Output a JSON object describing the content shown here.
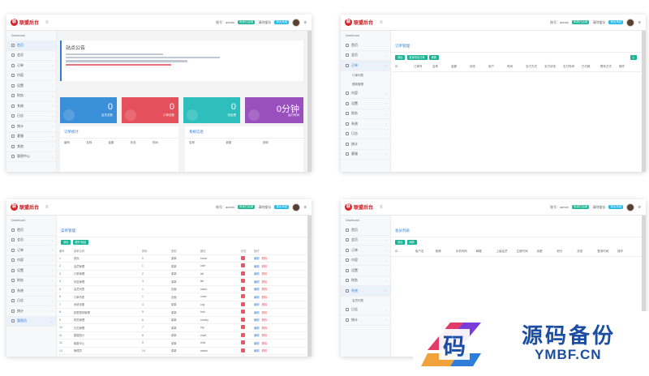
{
  "brand": {
    "logo_text": "联盟后台"
  },
  "topbar": {
    "items": [
      "账号：admin",
      "系统已启用",
      "清除缓存",
      "退出系统"
    ]
  },
  "sidebar_head": "Dashboard",
  "panel1": {
    "sidebar": [
      "首页",
      "会员",
      "订单",
      "内容",
      "设置",
      "财务",
      "系统",
      "日志",
      "统计",
      "客服",
      "其他",
      "管理中心"
    ],
    "notice_title": "站点公告",
    "stats": [
      {
        "value": "0",
        "label": "会员总数",
        "color": "#3b8fd9"
      },
      {
        "value": "0",
        "label": "订单总数",
        "color": "#e5505d"
      },
      {
        "value": "0",
        "label": "待处理",
        "color": "#2ebfbd"
      },
      {
        "value": "0分钟",
        "label": "运行时间",
        "color": "#9a4fbe"
      }
    ],
    "left_card_title": "订单统计",
    "left_table_head": [
      "编号",
      "名称",
      "金额",
      "状态",
      "时间"
    ],
    "right_card_title": "系统信息",
    "right_table_head": [
      "名称",
      "参数",
      "说明"
    ]
  },
  "panel2": {
    "sidebar": [
      "首页",
      "会员",
      "订单",
      "内容",
      "设置",
      "财务",
      "系统",
      "日志",
      "统计",
      "客服"
    ],
    "sub_items": [
      "订单列表",
      "退款管理"
    ],
    "card_title": "订单管理",
    "buttons": [
      "添加",
      "批量导出订单",
      "刷新"
    ],
    "table_head": [
      "ID",
      "订单号",
      "名称",
      "金额",
      "状态",
      "用户",
      "时间",
      "支付方式",
      "支付状态",
      "支付时间",
      "已付款",
      "联系方式",
      "操作"
    ]
  },
  "panel3": {
    "sidebar": [
      "首页",
      "会员",
      "订单",
      "内容",
      "设置",
      "财务",
      "系统",
      "日志",
      "统计",
      "管理员"
    ],
    "card_title": "菜单管理",
    "buttons": [
      "添加",
      "展开/收起"
    ],
    "table_head": [
      "编号",
      "菜单名称",
      "排序",
      "类型",
      "图标",
      "状态",
      "操作"
    ],
    "rows": [
      {
        "id": "1",
        "name": "首页",
        "sort": "0",
        "type": "菜单",
        "icon": "home"
      },
      {
        "id": "2",
        "name": "会员管理",
        "sort": "1",
        "type": "菜单",
        "icon": "user"
      },
      {
        "id": "3",
        "name": "订单管理",
        "sort": "2",
        "type": "菜单",
        "icon": "list"
      },
      {
        "id": "4",
        "name": "内容管理",
        "sort": "3",
        "type": "菜单",
        "icon": "file"
      },
      {
        "id": "5",
        "name": "会员列表",
        "sort": "1",
        "type": "页面",
        "icon": "users"
      },
      {
        "id": "6",
        "name": "订单列表",
        "sort": "1",
        "type": "页面",
        "icon": "order"
      },
      {
        "id": "7",
        "name": "系统设置",
        "sort": "4",
        "type": "菜单",
        "icon": "cog"
      },
      {
        "id": "8",
        "name": "权限规则管理",
        "sort": "5",
        "type": "菜单",
        "icon": "lock"
      },
      {
        "id": "9",
        "name": "财务管理",
        "sort": "6",
        "type": "菜单",
        "icon": "money"
      },
      {
        "id": "10",
        "name": "日志管理",
        "sort": "7",
        "type": "菜单",
        "icon": "log"
      },
      {
        "id": "11",
        "name": "数据统计",
        "sort": "8",
        "type": "菜单",
        "icon": "chart"
      },
      {
        "id": "12",
        "name": "客服中心",
        "sort": "9",
        "type": "菜单",
        "icon": "chat"
      },
      {
        "id": "13",
        "name": "管理员",
        "sort": "10",
        "type": "菜单",
        "icon": "admin"
      }
    ],
    "edit_label": "编辑",
    "delete_label": "删除"
  },
  "panel4": {
    "sidebar": [
      "首页",
      "会员",
      "订单",
      "内容",
      "设置",
      "财务",
      "系统",
      "日志",
      "统计"
    ],
    "sub_items": [
      "会员列表"
    ],
    "card_title": "会员列表",
    "buttons": [
      "添加",
      "刷新"
    ],
    "table_head": [
      "ID",
      "用户名",
      "昵称",
      "手机号码",
      "邮箱",
      "上级会员",
      "注册时间",
      "余额",
      "积分",
      "状态",
      "登录时间",
      "操作"
    ]
  },
  "watermark": {
    "title": "源码备份",
    "subtitle": "YMBF.CN",
    "mark": "码"
  }
}
